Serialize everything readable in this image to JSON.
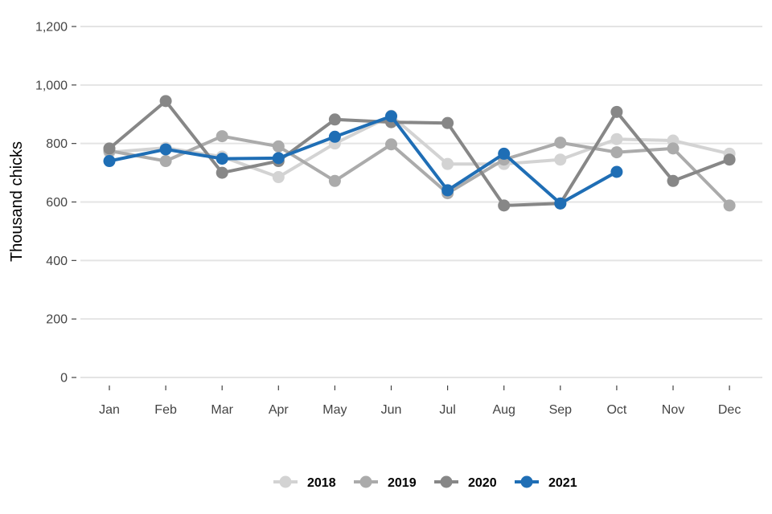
{
  "chart_data": {
    "type": "line",
    "title": "",
    "xlabel": "",
    "ylabel": "Thousand chicks",
    "categories": [
      "Jan",
      "Feb",
      "Mar",
      "Apr",
      "May",
      "Jun",
      "Jul",
      "Aug",
      "Sep",
      "Oct",
      "Nov",
      "Dec"
    ],
    "ylim": [
      0,
      1200
    ],
    "yticks": [
      0,
      200,
      400,
      600,
      800,
      1000,
      1200
    ],
    "ytick_labels": [
      "0",
      "200",
      "400",
      "600",
      "800",
      "1,000",
      "1,200"
    ],
    "grid": "horizontal",
    "legend_position": "bottom",
    "series": [
      {
        "name": "2018",
        "color": "#d3d3d3",
        "values": [
          770,
          785,
          755,
          685,
          800,
          895,
          730,
          730,
          745,
          815,
          810,
          765
        ]
      },
      {
        "name": "2019",
        "color": "#ababab",
        "values": [
          775,
          740,
          825,
          790,
          672,
          797,
          630,
          745,
          803,
          770,
          783,
          588
        ]
      },
      {
        "name": "2020",
        "color": "#878787",
        "values": [
          783,
          945,
          700,
          740,
          882,
          873,
          870,
          588,
          595,
          908,
          672,
          745
        ]
      },
      {
        "name": "2021",
        "color": "#1f6eb5",
        "values": [
          740,
          780,
          748,
          750,
          823,
          893,
          640,
          765,
          595,
          703,
          null,
          null
        ]
      }
    ]
  }
}
